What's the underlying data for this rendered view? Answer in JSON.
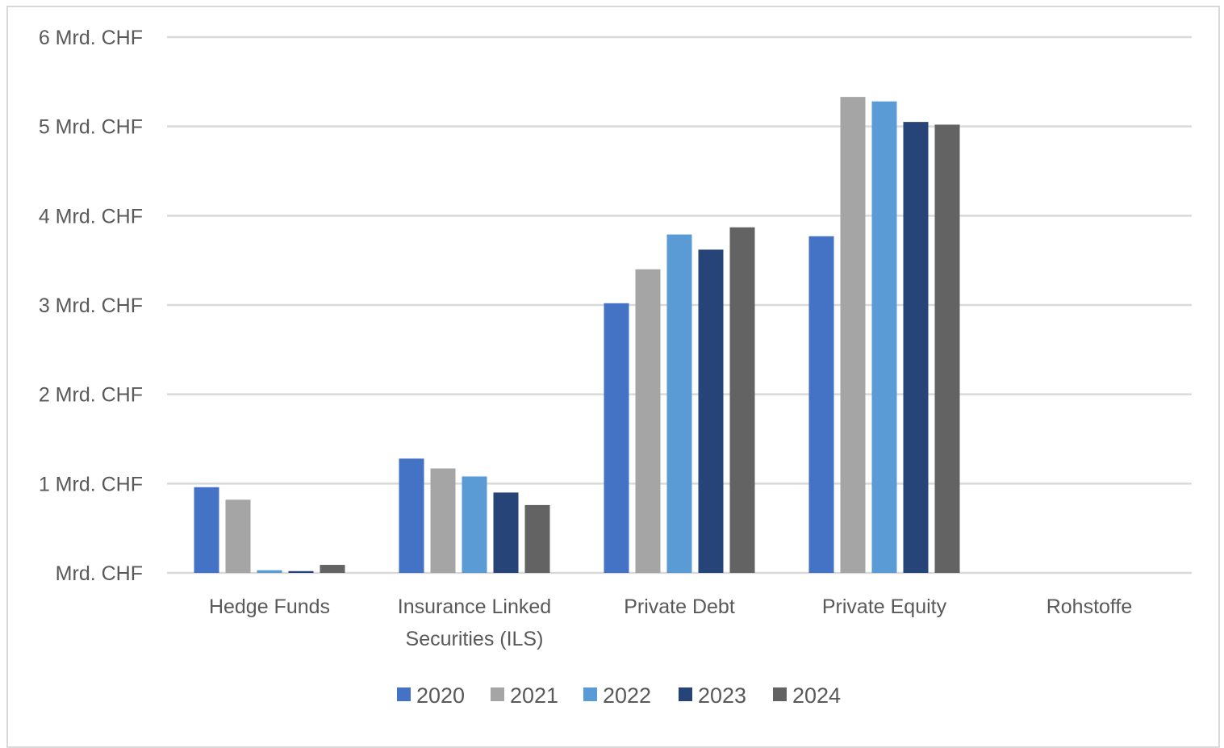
{
  "chart_data": {
    "type": "bar",
    "categories": [
      [
        "Hedge Funds"
      ],
      [
        "Insurance Linked",
        "Securities (ILS)"
      ],
      [
        "Private Debt"
      ],
      [
        "Private Equity"
      ],
      [
        "Rohstoffe"
      ]
    ],
    "series": [
      {
        "name": "2020",
        "color": "#4472c4",
        "values": [
          0.96,
          1.28,
          3.02,
          3.77,
          0
        ]
      },
      {
        "name": "2021",
        "color": "#a5a5a5",
        "values": [
          0.82,
          1.17,
          3.4,
          5.33,
          0
        ]
      },
      {
        "name": "2022",
        "color": "#5b9bd5",
        "values": [
          0.03,
          1.08,
          3.79,
          5.28,
          0
        ]
      },
      {
        "name": "2023",
        "color": "#264478",
        "values": [
          0.02,
          0.9,
          3.62,
          5.05,
          0
        ]
      },
      {
        "name": "2024",
        "color": "#636363",
        "values": [
          0.09,
          0.76,
          3.87,
          5.02,
          0
        ]
      }
    ],
    "yticks": [
      {
        "value": 0,
        "label": "Mrd. CHF"
      },
      {
        "value": 1,
        "label": "1 Mrd. CHF"
      },
      {
        "value": 2,
        "label": "2 Mrd. CHF"
      },
      {
        "value": 3,
        "label": "3 Mrd. CHF"
      },
      {
        "value": 4,
        "label": "4 Mrd. CHF"
      },
      {
        "value": 5,
        "label": "5 Mrd. CHF"
      },
      {
        "value": 6,
        "label": "6 Mrd. CHF"
      }
    ],
    "ylim": [
      0,
      6
    ],
    "grid": true,
    "legend": "bottom",
    "title": "",
    "xlabel": "",
    "ylabel": ""
  }
}
